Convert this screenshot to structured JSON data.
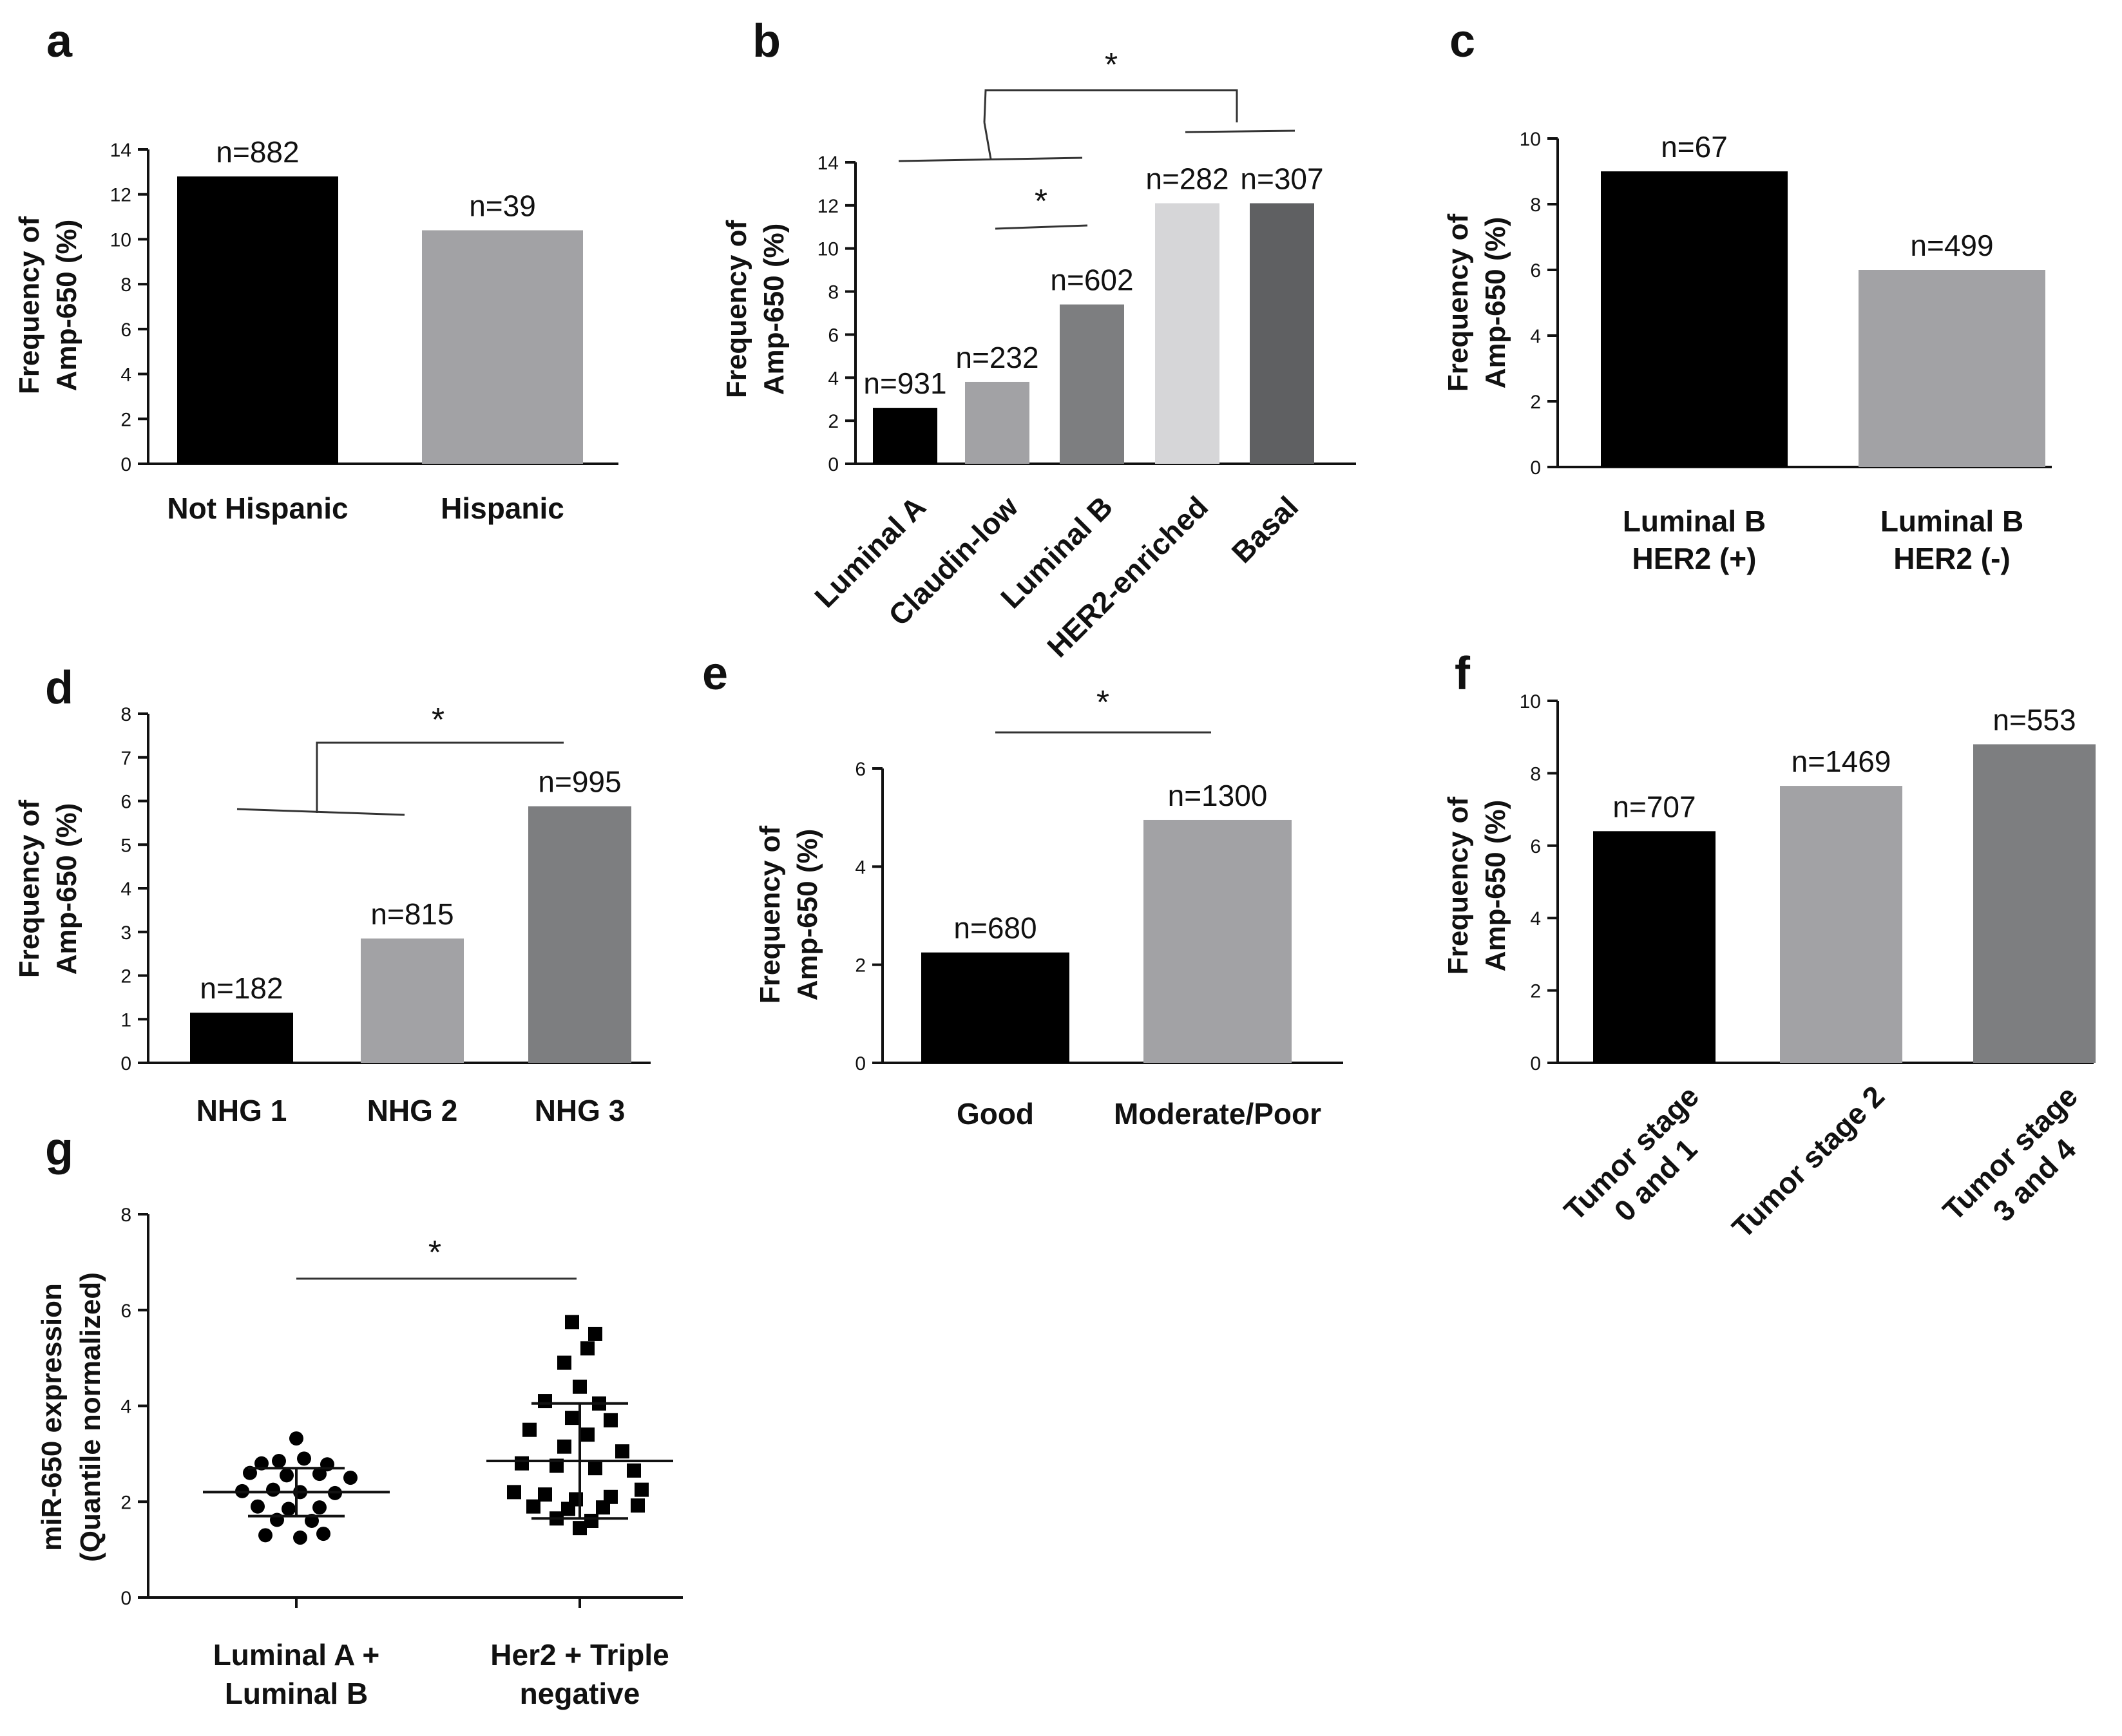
{
  "chart_data": [
    {
      "id": "a",
      "letter": "a",
      "type": "bar",
      "ylabel": [
        "Frequency of",
        "Amp-650 (%)"
      ],
      "ylim": [
        0,
        14
      ],
      "yticks": [
        0,
        2,
        4,
        6,
        8,
        10,
        12,
        14
      ],
      "categories": [
        [
          "Not Hispanic"
        ],
        [
          "Hispanic"
        ]
      ],
      "values": [
        12.8,
        10.4
      ],
      "n_labels": [
        "n=882",
        "n=39"
      ],
      "colors": [
        "#000000",
        "#a2a2a5"
      ],
      "significance": []
    },
    {
      "id": "b",
      "letter": "b",
      "type": "bar",
      "ylabel": [
        "Frequency of",
        "Amp-650 (%)"
      ],
      "ylim": [
        0,
        14
      ],
      "yticks": [
        0,
        2,
        4,
        6,
        8,
        10,
        12,
        14
      ],
      "categories": [
        [
          "Luminal A"
        ],
        [
          "Claudin-low"
        ],
        [
          "Luminal B"
        ],
        [
          "HER2-enriched"
        ],
        [
          "Basal"
        ]
      ],
      "values": [
        2.6,
        3.8,
        7.4,
        12.1,
        12.1
      ],
      "n_labels": [
        "n=931",
        "n=232",
        "n=602",
        "n=282",
        "n=307"
      ],
      "colors": [
        "#000000",
        "#a2a2a5",
        "#7d7e80",
        "#d6d6d8",
        "#5f6062"
      ],
      "significance": [
        "*",
        "*"
      ]
    },
    {
      "id": "c",
      "letter": "c",
      "type": "bar",
      "ylabel": [
        "Frequency of",
        "Amp-650 (%)"
      ],
      "ylim": [
        0,
        10
      ],
      "yticks": [
        0,
        2,
        4,
        6,
        8,
        10
      ],
      "categories": [
        [
          "Luminal B",
          "HER2 (+)"
        ],
        [
          "Luminal B",
          "HER2 (-)"
        ]
      ],
      "values": [
        9.0,
        6.0
      ],
      "n_labels": [
        "n=67",
        "n=499"
      ],
      "colors": [
        "#000000",
        "#a2a2a5"
      ],
      "significance": []
    },
    {
      "id": "d",
      "letter": "d",
      "type": "bar",
      "ylabel": [
        "Frequency of",
        "Amp-650 (%)"
      ],
      "ylim": [
        0,
        8
      ],
      "yticks": [
        0,
        1,
        2,
        3,
        4,
        5,
        6,
        7,
        8
      ],
      "categories": [
        [
          "NHG 1"
        ],
        [
          "NHG 2"
        ],
        [
          "NHG 3"
        ]
      ],
      "values": [
        1.15,
        2.85,
        5.88
      ],
      "n_labels": [
        "n=182",
        "n=815",
        "n=995"
      ],
      "colors": [
        "#000000",
        "#a2a2a5",
        "#7d7e80"
      ],
      "significance": [
        "*"
      ]
    },
    {
      "id": "e",
      "letter": "e",
      "type": "bar",
      "ylabel": [
        "Frequency of",
        "Amp-650 (%)"
      ],
      "ylim": [
        0,
        6
      ],
      "yticks": [
        0,
        2,
        4,
        6
      ],
      "categories": [
        [
          "Good"
        ],
        [
          "Moderate/Poor"
        ]
      ],
      "values": [
        2.25,
        4.95
      ],
      "n_labels": [
        "n=680",
        "n=1300"
      ],
      "colors": [
        "#000000",
        "#a2a2a5"
      ],
      "significance": [
        "*"
      ]
    },
    {
      "id": "f",
      "letter": "f",
      "type": "bar",
      "ylabel": [
        "Frequency of",
        "Amp-650 (%)"
      ],
      "ylim": [
        0,
        10
      ],
      "yticks": [
        0,
        2,
        4,
        6,
        8,
        10
      ],
      "categories": [
        [
          "Tumor stage",
          "0 and 1"
        ],
        [
          "Tumor stage 2"
        ],
        [
          "Tumor stage",
          "3 and 4"
        ]
      ],
      "values": [
        6.4,
        7.65,
        8.8
      ],
      "n_labels": [
        "n=707",
        "n=1469",
        "n=553"
      ],
      "colors": [
        "#000000",
        "#a2a2a5",
        "#7d7e80"
      ],
      "significance": []
    },
    {
      "id": "g",
      "letter": "g",
      "type": "scatter",
      "ylabel": [
        "miR-650 expression",
        "(Quantile normalized)"
      ],
      "ylim": [
        0,
        8
      ],
      "yticks": [
        0,
        2,
        4,
        6,
        8
      ],
      "categories": [
        [
          "Luminal A +",
          "Luminal B"
        ],
        [
          "Her2 + Triple",
          "negative"
        ]
      ],
      "series": [
        {
          "name": "Luminal A + Luminal B",
          "marker": "circle",
          "mean": 2.2,
          "sd_low": 1.7,
          "sd_high": 2.7,
          "points": [
            [
              0.0,
              3.32
            ],
            [
              -0.18,
              2.8
            ],
            [
              -0.09,
              2.85
            ],
            [
              0.04,
              2.9
            ],
            [
              0.16,
              2.78
            ],
            [
              -0.24,
              2.6
            ],
            [
              -0.05,
              2.55
            ],
            [
              0.12,
              2.58
            ],
            [
              0.28,
              2.5
            ],
            [
              -0.28,
              2.22
            ],
            [
              -0.12,
              2.25
            ],
            [
              0.02,
              2.2
            ],
            [
              0.2,
              2.18
            ],
            [
              -0.2,
              1.9
            ],
            [
              -0.04,
              1.85
            ],
            [
              0.12,
              1.88
            ],
            [
              -0.1,
              1.62
            ],
            [
              0.08,
              1.6
            ],
            [
              -0.16,
              1.3
            ],
            [
              0.02,
              1.25
            ],
            [
              0.14,
              1.33
            ]
          ]
        },
        {
          "name": "Her2 + Triple negative",
          "marker": "square",
          "mean": 2.85,
          "sd_low": 1.65,
          "sd_high": 4.05,
          "points": [
            [
              -0.04,
              5.75
            ],
            [
              0.08,
              5.5
            ],
            [
              0.04,
              5.2
            ],
            [
              -0.08,
              4.9
            ],
            [
              0.0,
              4.4
            ],
            [
              -0.18,
              4.1
            ],
            [
              0.1,
              4.05
            ],
            [
              -0.04,
              3.75
            ],
            [
              0.16,
              3.7
            ],
            [
              -0.26,
              3.5
            ],
            [
              0.04,
              3.4
            ],
            [
              -0.08,
              3.15
            ],
            [
              0.22,
              3.05
            ],
            [
              -0.3,
              2.8
            ],
            [
              -0.12,
              2.75
            ],
            [
              0.08,
              2.7
            ],
            [
              0.28,
              2.65
            ],
            [
              -0.34,
              2.2
            ],
            [
              -0.18,
              2.15
            ],
            [
              -0.02,
              2.05
            ],
            [
              0.16,
              2.1
            ],
            [
              0.32,
              2.25
            ],
            [
              -0.24,
              1.9
            ],
            [
              -0.06,
              1.85
            ],
            [
              0.12,
              1.88
            ],
            [
              0.3,
              1.92
            ],
            [
              -0.12,
              1.65
            ],
            [
              0.06,
              1.6
            ],
            [
              0.0,
              1.45
            ]
          ]
        }
      ],
      "significance": [
        "*"
      ]
    }
  ]
}
